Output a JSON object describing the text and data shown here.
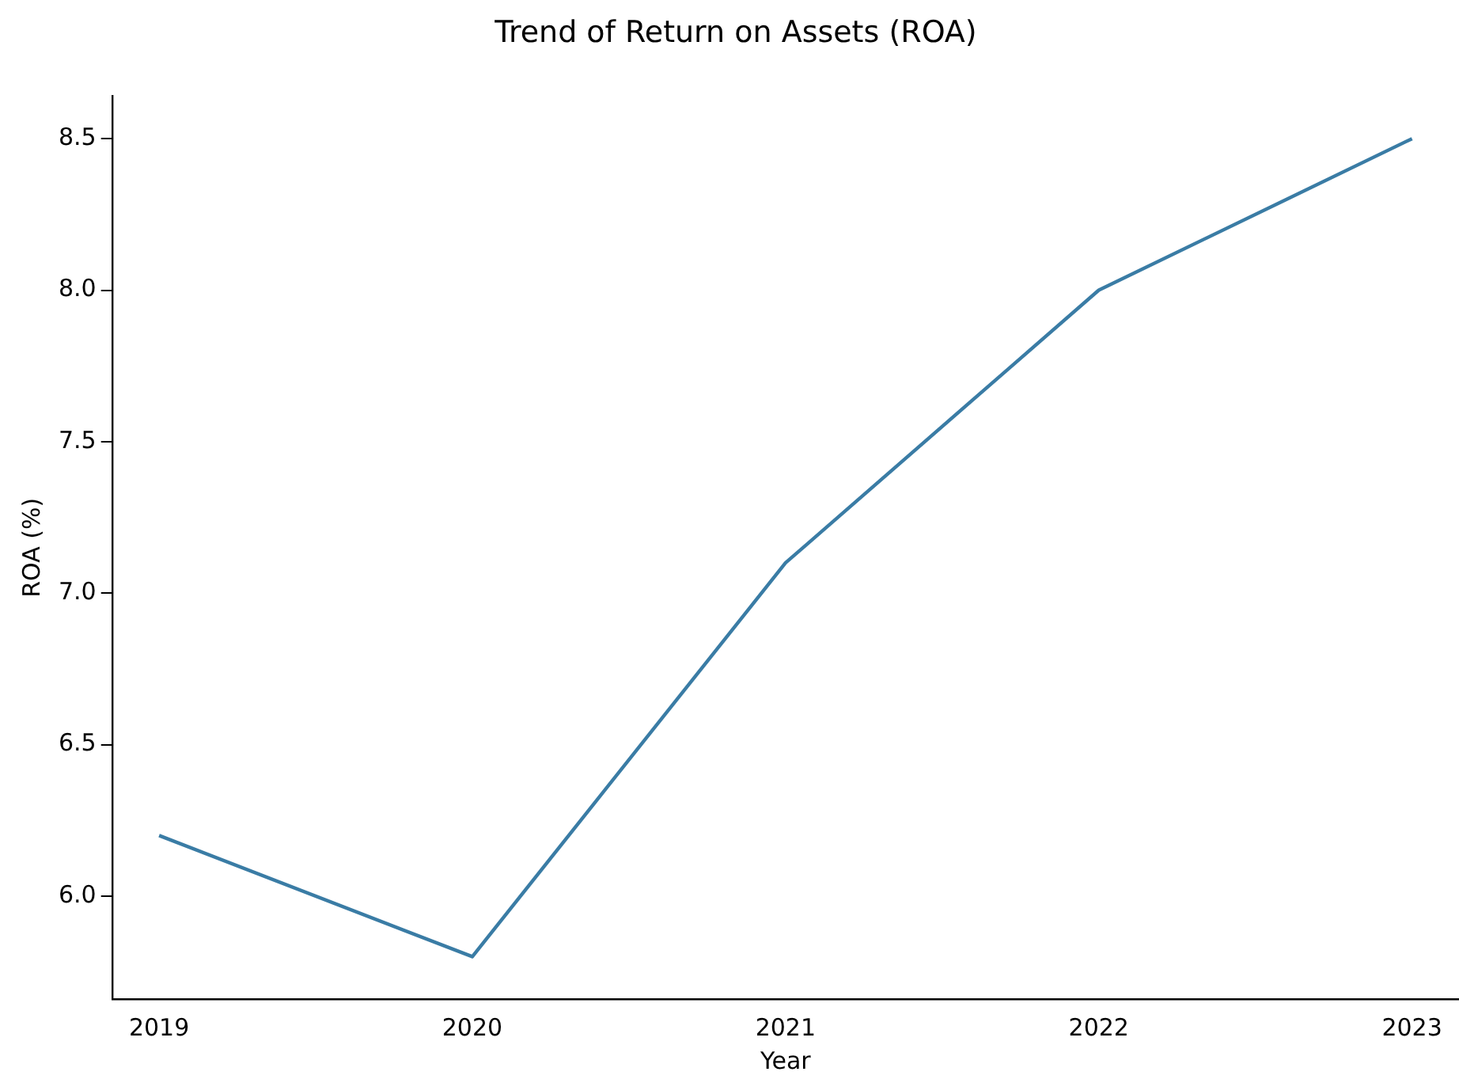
{
  "chart_data": {
    "type": "line",
    "title": "Trend of Return on Assets (ROA)",
    "xlabel": "Year",
    "ylabel": "ROA (%)",
    "x": [
      2019,
      2020,
      2021,
      2022,
      2023
    ],
    "series": [
      {
        "color": "#3a7ca5",
        "values": [
          6.2,
          5.8,
          7.1,
          8.0,
          8.5
        ]
      }
    ],
    "xlim": [
      2018.85,
      2023.15
    ],
    "xticks": [
      2019,
      2020,
      2021,
      2022,
      2023
    ],
    "ylim": [
      5.66,
      8.64
    ],
    "yticks": [
      {
        "value": 6.0,
        "label": "6.0"
      },
      {
        "value": 6.5,
        "label": "6.5"
      },
      {
        "value": 7.0,
        "label": "7.0"
      },
      {
        "value": 7.5,
        "label": "7.5"
      },
      {
        "value": 8.0,
        "label": "8.0"
      },
      {
        "value": 8.5,
        "label": "8.5"
      }
    ],
    "grid": false,
    "legend": false,
    "marker": "none",
    "line_style": "solid"
  }
}
